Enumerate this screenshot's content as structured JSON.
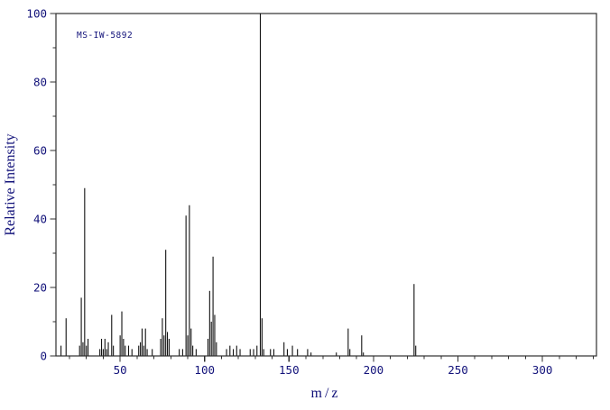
{
  "colors": {
    "background": "#ffffff",
    "axis": "#2f2f2f",
    "peak": "#111111",
    "label_text": "#12127a"
  },
  "chart_data": {
    "type": "bar",
    "chart_kind": "mass-spectrum",
    "title": "MS-IW-5892",
    "xlabel": "m/z",
    "ylabel": "Relative Intensity",
    "xlim": [
      12,
      332
    ],
    "ylim": [
      0,
      100
    ],
    "x_ticks_labeled": [
      50,
      100,
      150,
      200,
      250,
      300
    ],
    "x_minor_tick_step": 10,
    "y_ticks_labeled": [
      0,
      20,
      40,
      60,
      80,
      100
    ],
    "y_minor_tick_step": 10,
    "grid": false,
    "legend": false,
    "series": [
      {
        "name": "relative-intensity-peaks",
        "points": [
          [
            15,
            3
          ],
          [
            18,
            11
          ],
          [
            26,
            3
          ],
          [
            27,
            17
          ],
          [
            28,
            4
          ],
          [
            29,
            49
          ],
          [
            30,
            3
          ],
          [
            31,
            5
          ],
          [
            38,
            2
          ],
          [
            39,
            5
          ],
          [
            40,
            2
          ],
          [
            41,
            5
          ],
          [
            42,
            2
          ],
          [
            43,
            4
          ],
          [
            45,
            12
          ],
          [
            46,
            3
          ],
          [
            50,
            6
          ],
          [
            51,
            13
          ],
          [
            52,
            5
          ],
          [
            53,
            3
          ],
          [
            55,
            3
          ],
          [
            57,
            2
          ],
          [
            61,
            3
          ],
          [
            62,
            4
          ],
          [
            63,
            8
          ],
          [
            64,
            3
          ],
          [
            65,
            8
          ],
          [
            66,
            2
          ],
          [
            69,
            2
          ],
          [
            74,
            5
          ],
          [
            75,
            11
          ],
          [
            76,
            6
          ],
          [
            77,
            31
          ],
          [
            78,
            7
          ],
          [
            79,
            5
          ],
          [
            85,
            2
          ],
          [
            87,
            2
          ],
          [
            89,
            41
          ],
          [
            90,
            6
          ],
          [
            91,
            44
          ],
          [
            92,
            8
          ],
          [
            93,
            3
          ],
          [
            95,
            2
          ],
          [
            102,
            5
          ],
          [
            103,
            19
          ],
          [
            104,
            10
          ],
          [
            105,
            29
          ],
          [
            106,
            12
          ],
          [
            107,
            4
          ],
          [
            113,
            2
          ],
          [
            115,
            3
          ],
          [
            117,
            2
          ],
          [
            119,
            3
          ],
          [
            121,
            2
          ],
          [
            127,
            2
          ],
          [
            129,
            2
          ],
          [
            131,
            3
          ],
          [
            133,
            100
          ],
          [
            134,
            11
          ],
          [
            135,
            2
          ],
          [
            139,
            2
          ],
          [
            141,
            2
          ],
          [
            147,
            4
          ],
          [
            149,
            2
          ],
          [
            152,
            3
          ],
          [
            155,
            2
          ],
          [
            161,
            2
          ],
          [
            163,
            1
          ],
          [
            178,
            1
          ],
          [
            185,
            8
          ],
          [
            186,
            2
          ],
          [
            193,
            6
          ],
          [
            194,
            1
          ],
          [
            224,
            21
          ],
          [
            225,
            3
          ]
        ]
      }
    ]
  }
}
